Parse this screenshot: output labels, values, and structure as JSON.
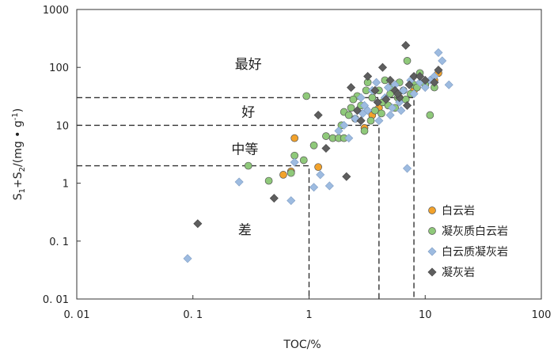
{
  "chart_data": {
    "type": "scatter",
    "title": "",
    "xlabel": "TOC/%",
    "ylabel": "S1+S2/(mg·g⁻¹)",
    "ylabel_parts": {
      "s": "S",
      "sub1": "1",
      "plus": "+",
      "sub2": "2",
      "unit": "/(mg • g",
      "sup": "-1",
      "close": ")"
    },
    "xscale": "log",
    "yscale": "log",
    "xlim": [
      0.01,
      100
    ],
    "ylim": [
      0.01,
      1000
    ],
    "x_ticks": [
      0.01,
      0.1,
      1,
      10,
      100
    ],
    "x_tick_labels": [
      "0. 01",
      "0. 1",
      "1",
      "10",
      "100"
    ],
    "y_ticks": [
      0.01,
      0.1,
      1,
      10,
      100,
      1000
    ],
    "y_tick_labels": [
      "0. 01",
      "0. 1",
      "1",
      "10",
      "100",
      "1000"
    ],
    "grid": false,
    "legend_position": "bottom-right",
    "zones": [
      {
        "label": "最好",
        "x": 0.3,
        "y": 95
      },
      {
        "label": "好",
        "x": 0.3,
        "y": 14
      },
      {
        "label": "中等",
        "x": 0.28,
        "y": 3.2
      },
      {
        "label": "差",
        "x": 0.28,
        "y": 0.13
      }
    ],
    "threshold_lines": [
      {
        "x_end": 1,
        "y": 2
      },
      {
        "x_end": 4,
        "y": 10
      },
      {
        "x_end": 8,
        "y": 30
      }
    ],
    "series": [
      {
        "name": "白云岩",
        "marker": "circle",
        "color": "#f2a22b",
        "points": [
          [
            0.6,
            1.4
          ],
          [
            0.7,
            1.6
          ],
          [
            0.75,
            6
          ],
          [
            1.2,
            1.9
          ],
          [
            3,
            9
          ],
          [
            3.5,
            15
          ],
          [
            4,
            20
          ],
          [
            5,
            45
          ],
          [
            6,
            30
          ],
          [
            8,
            40
          ],
          [
            12,
            60
          ],
          [
            13,
            80
          ]
        ]
      },
      {
        "name": "凝灰质白云岩",
        "marker": "circle",
        "color": "#8fc97a",
        "points": [
          [
            0.3,
            2
          ],
          [
            0.45,
            1.1
          ],
          [
            0.7,
            1.5
          ],
          [
            0.75,
            3
          ],
          [
            0.9,
            2.5
          ],
          [
            0.95,
            32
          ],
          [
            1.1,
            4.5
          ],
          [
            1.4,
            6.5
          ],
          [
            1.6,
            6
          ],
          [
            1.8,
            6
          ],
          [
            1.9,
            10
          ],
          [
            2,
            17
          ],
          [
            2,
            6
          ],
          [
            2.2,
            15
          ],
          [
            2.3,
            20
          ],
          [
            2.5,
            13
          ],
          [
            2.8,
            22
          ],
          [
            3,
            8
          ],
          [
            3.2,
            55
          ],
          [
            3.5,
            30
          ],
          [
            3.7,
            18
          ],
          [
            4,
            40
          ],
          [
            4.3,
            25
          ],
          [
            4.5,
            60
          ],
          [
            5,
            35
          ],
          [
            5.2,
            45
          ],
          [
            5.5,
            20
          ],
          [
            6,
            55
          ],
          [
            6.5,
            40
          ],
          [
            7,
            130
          ],
          [
            7.5,
            35
          ],
          [
            8,
            50
          ],
          [
            9,
            80
          ],
          [
            10,
            50
          ],
          [
            11,
            15
          ],
          [
            12,
            45
          ],
          [
            2.6,
            32
          ],
          [
            3.1,
            40
          ],
          [
            4.8,
            22
          ],
          [
            5.8,
            30
          ],
          [
            6.8,
            28
          ],
          [
            8.5,
            45
          ],
          [
            3.4,
            12
          ],
          [
            4.2,
            16
          ],
          [
            2.4,
            28
          ]
        ]
      },
      {
        "name": "白云质凝灰岩",
        "marker": "diamond",
        "color": "#9dbbe0",
        "points": [
          [
            0.09,
            0.05
          ],
          [
            0.25,
            1.05
          ],
          [
            0.7,
            0.5
          ],
          [
            0.75,
            2.3
          ],
          [
            1.1,
            0.85
          ],
          [
            1.25,
            1.4
          ],
          [
            1.5,
            0.9
          ],
          [
            1.8,
            8
          ],
          [
            2,
            10
          ],
          [
            2.2,
            6
          ],
          [
            2.5,
            13
          ],
          [
            2.8,
            30
          ],
          [
            3,
            22
          ],
          [
            3.2,
            18
          ],
          [
            3.5,
            40
          ],
          [
            4,
            12
          ],
          [
            4.5,
            30
          ],
          [
            5,
            15
          ],
          [
            5.5,
            50
          ],
          [
            6,
            25
          ],
          [
            6.5,
            40
          ],
          [
            7,
            1.8
          ],
          [
            8,
            35
          ],
          [
            9,
            55
          ],
          [
            10,
            45
          ],
          [
            12,
            70
          ],
          [
            13,
            180
          ],
          [
            14,
            130
          ],
          [
            16,
            50
          ],
          [
            3.8,
            55
          ],
          [
            4.8,
            45
          ],
          [
            7.5,
            60
          ],
          [
            5.2,
            20
          ],
          [
            2.9,
            16
          ],
          [
            6.2,
            18
          ],
          [
            11,
            60
          ]
        ]
      },
      {
        "name": "凝灰岩",
        "marker": "diamond",
        "color": "#5e5e5e",
        "points": [
          [
            0.11,
            0.2
          ],
          [
            0.5,
            0.55
          ],
          [
            1.2,
            15
          ],
          [
            1.4,
            4
          ],
          [
            2.1,
            1.3
          ],
          [
            2.3,
            45
          ],
          [
            2.8,
            12
          ],
          [
            3.2,
            70
          ],
          [
            3.7,
            40
          ],
          [
            4.3,
            100
          ],
          [
            5,
            60
          ],
          [
            5.5,
            40
          ],
          [
            6,
            30
          ],
          [
            6.8,
            240
          ],
          [
            7.3,
            50
          ],
          [
            8,
            70
          ],
          [
            9,
            70
          ],
          [
            10,
            60
          ],
          [
            12,
            55
          ],
          [
            13,
            90
          ],
          [
            3.9,
            25
          ],
          [
            4.6,
            28
          ],
          [
            5.8,
            35
          ],
          [
            7,
            22
          ],
          [
            2.6,
            18
          ]
        ]
      }
    ]
  }
}
